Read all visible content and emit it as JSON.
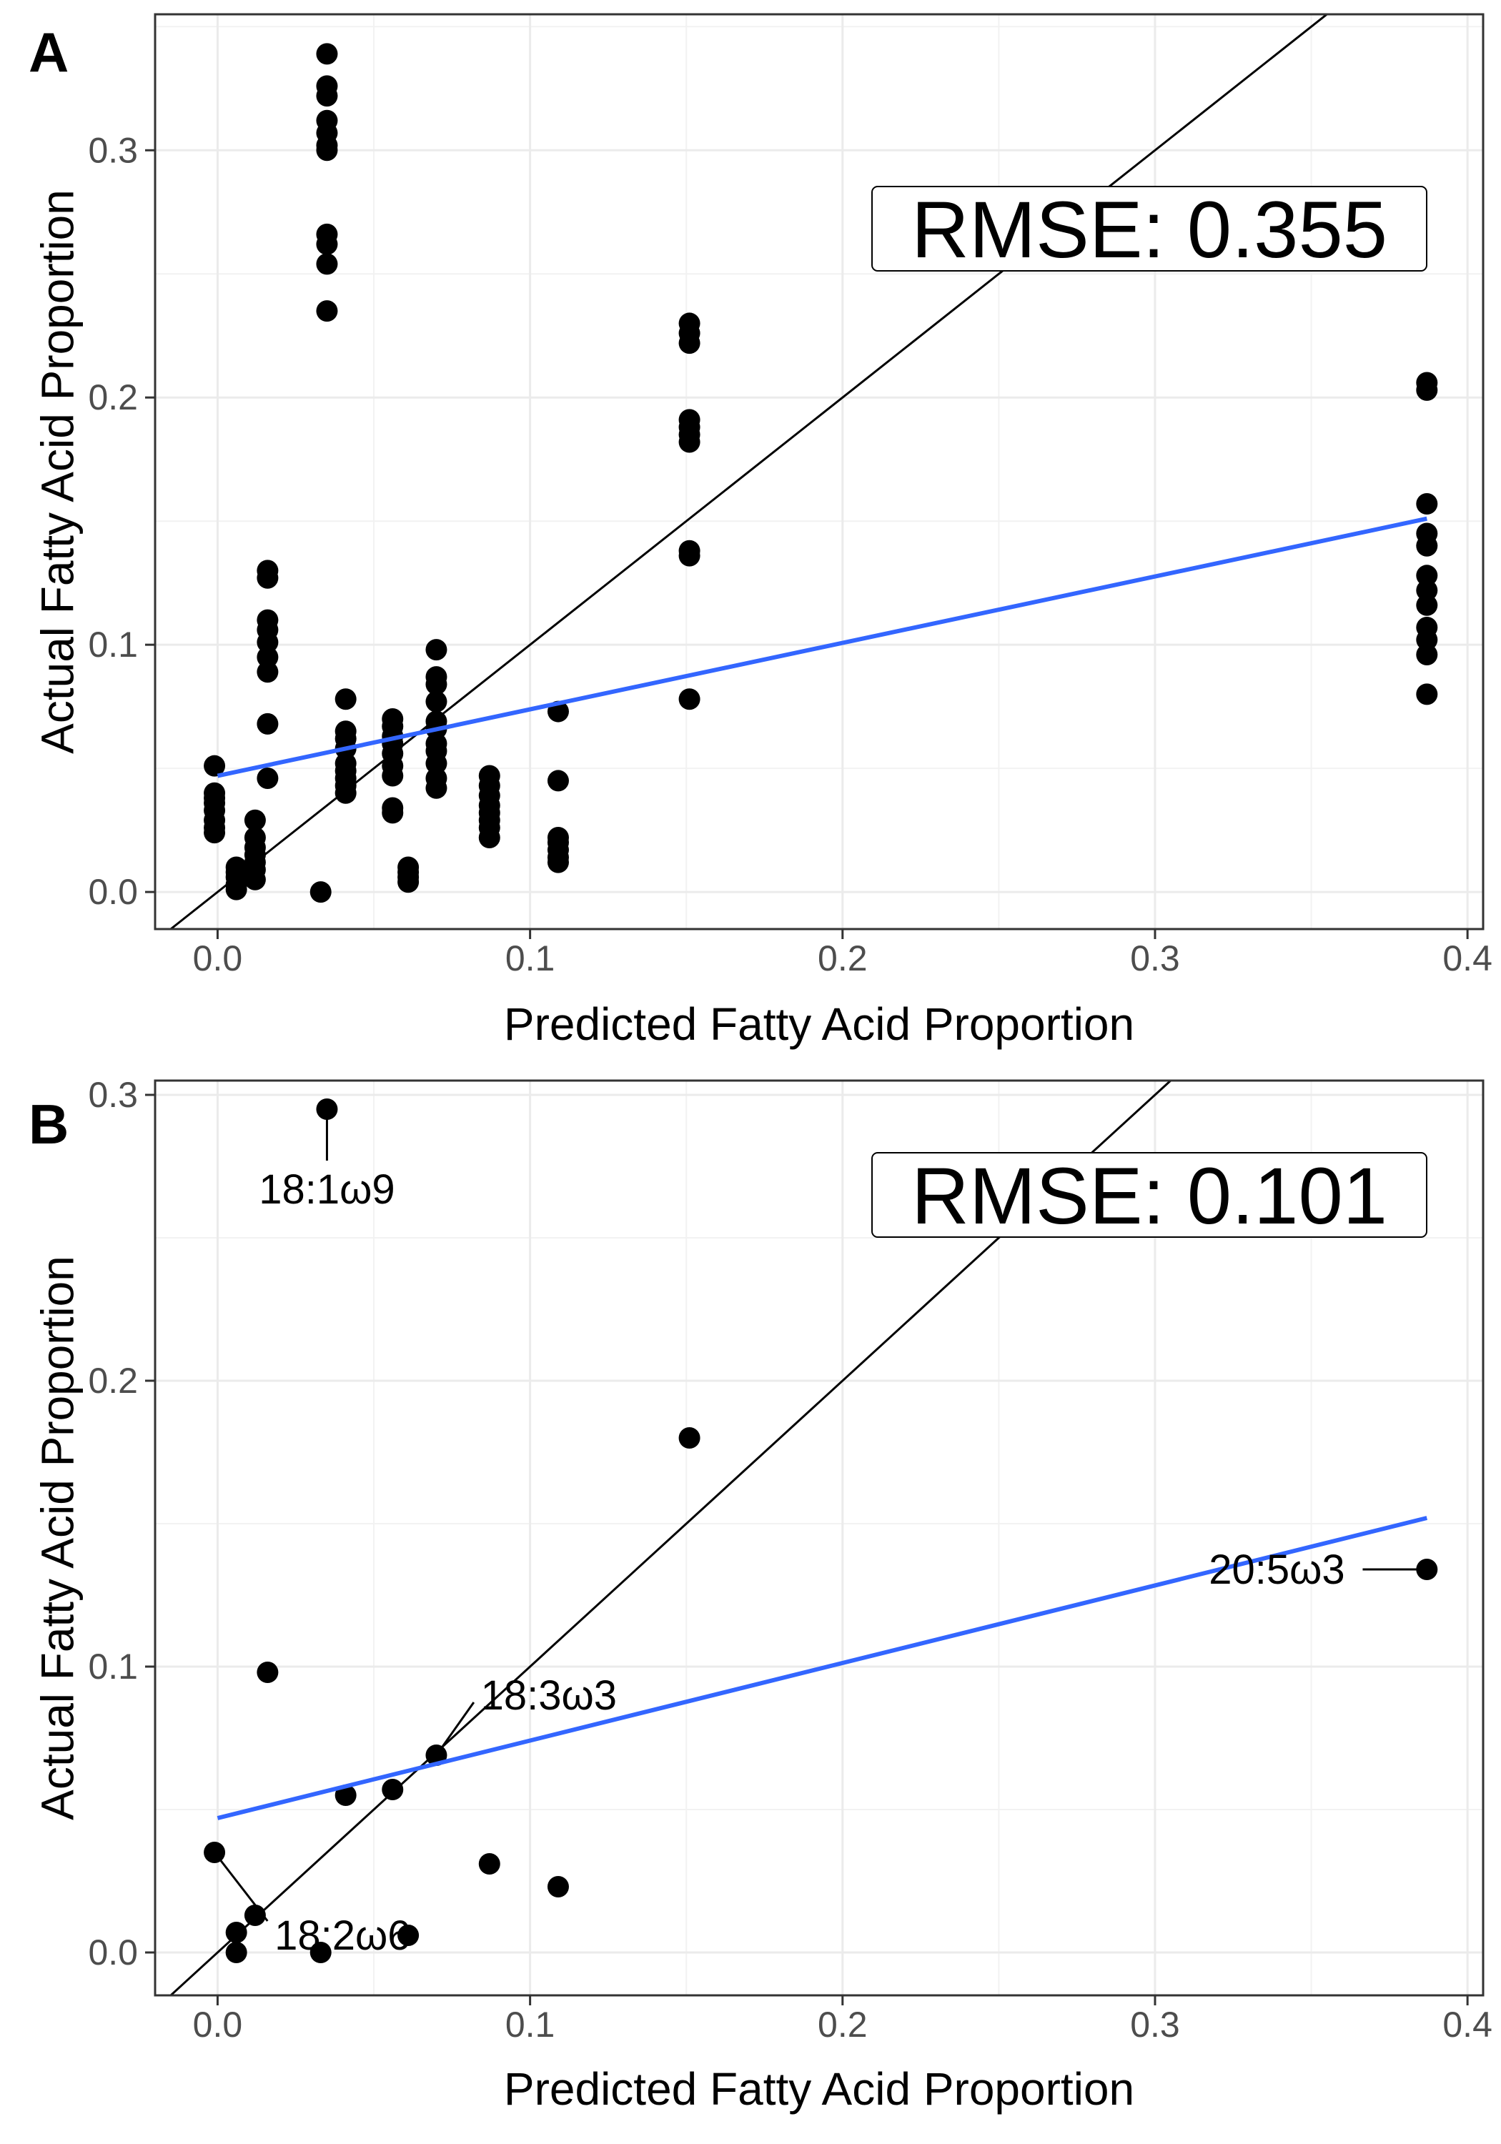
{
  "chart_data": [
    {
      "type": "scatter",
      "panel_label": "A",
      "xlabel": "Predicted Fatty Acid Proportion",
      "ylabel": "Actual Fatty Acid Proportion",
      "xlim": [
        -0.02,
        0.405
      ],
      "ylim": [
        -0.015,
        0.355
      ],
      "xticks": [
        0.0,
        0.1,
        0.2,
        0.3,
        0.4
      ],
      "yticks": [
        0.0,
        0.1,
        0.2,
        0.3
      ],
      "xtick_labels": [
        "0.0",
        "0.1",
        "0.2",
        "0.3",
        "0.4"
      ],
      "ytick_labels": [
        "0.0",
        "0.1",
        "0.2",
        "0.3"
      ],
      "grid": true,
      "annotation": "RMSE:  0.355",
      "reference_line": {
        "slope": 1,
        "intercept": 0,
        "color": "#000000"
      },
      "fit_line": {
        "x": [
          0.0,
          0.387
        ],
        "y": [
          0.047,
          0.151
        ],
        "color": "#3366FF"
      },
      "points": [
        [
          -0.001,
          0.051
        ],
        [
          -0.001,
          0.04
        ],
        [
          -0.001,
          0.038
        ],
        [
          -0.001,
          0.036
        ],
        [
          -0.001,
          0.033
        ],
        [
          -0.001,
          0.029
        ],
        [
          -0.001,
          0.026
        ],
        [
          -0.001,
          0.024
        ],
        [
          0.006,
          0.01
        ],
        [
          0.006,
          0.008
        ],
        [
          0.006,
          0.006
        ],
        [
          0.006,
          0.003
        ],
        [
          0.006,
          0.001
        ],
        [
          0.012,
          0.029
        ],
        [
          0.012,
          0.022
        ],
        [
          0.012,
          0.018
        ],
        [
          0.012,
          0.015
        ],
        [
          0.012,
          0.012
        ],
        [
          0.012,
          0.009
        ],
        [
          0.012,
          0.005
        ],
        [
          0.016,
          0.13
        ],
        [
          0.016,
          0.127
        ],
        [
          0.016,
          0.11
        ],
        [
          0.016,
          0.106
        ],
        [
          0.016,
          0.101
        ],
        [
          0.016,
          0.095
        ],
        [
          0.016,
          0.089
        ],
        [
          0.016,
          0.068
        ],
        [
          0.016,
          0.046
        ],
        [
          0.035,
          0.339
        ],
        [
          0.035,
          0.326
        ],
        [
          0.035,
          0.322
        ],
        [
          0.035,
          0.312
        ],
        [
          0.035,
          0.307
        ],
        [
          0.035,
          0.302
        ],
        [
          0.035,
          0.3
        ],
        [
          0.035,
          0.266
        ],
        [
          0.035,
          0.262
        ],
        [
          0.035,
          0.254
        ],
        [
          0.035,
          0.235
        ],
        [
          0.033,
          0.0
        ],
        [
          0.041,
          0.078
        ],
        [
          0.041,
          0.065
        ],
        [
          0.041,
          0.062
        ],
        [
          0.041,
          0.058
        ],
        [
          0.041,
          0.052
        ],
        [
          0.041,
          0.049
        ],
        [
          0.041,
          0.046
        ],
        [
          0.041,
          0.043
        ],
        [
          0.041,
          0.04
        ],
        [
          0.056,
          0.07
        ],
        [
          0.056,
          0.067
        ],
        [
          0.056,
          0.063
        ],
        [
          0.056,
          0.06
        ],
        [
          0.056,
          0.056
        ],
        [
          0.056,
          0.051
        ],
        [
          0.056,
          0.047
        ],
        [
          0.056,
          0.034
        ],
        [
          0.056,
          0.032
        ],
        [
          0.061,
          0.01
        ],
        [
          0.061,
          0.008
        ],
        [
          0.061,
          0.006
        ],
        [
          0.061,
          0.004
        ],
        [
          0.07,
          0.098
        ],
        [
          0.07,
          0.087
        ],
        [
          0.07,
          0.084
        ],
        [
          0.07,
          0.077
        ],
        [
          0.07,
          0.069
        ],
        [
          0.07,
          0.066
        ],
        [
          0.07,
          0.06
        ],
        [
          0.07,
          0.057
        ],
        [
          0.07,
          0.052
        ],
        [
          0.07,
          0.046
        ],
        [
          0.07,
          0.042
        ],
        [
          0.087,
          0.047
        ],
        [
          0.087,
          0.043
        ],
        [
          0.087,
          0.039
        ],
        [
          0.087,
          0.035
        ],
        [
          0.087,
          0.032
        ],
        [
          0.087,
          0.029
        ],
        [
          0.087,
          0.026
        ],
        [
          0.087,
          0.022
        ],
        [
          0.109,
          0.073
        ],
        [
          0.109,
          0.045
        ],
        [
          0.109,
          0.022
        ],
        [
          0.109,
          0.02
        ],
        [
          0.109,
          0.017
        ],
        [
          0.109,
          0.014
        ],
        [
          0.109,
          0.012
        ],
        [
          0.151,
          0.23
        ],
        [
          0.151,
          0.226
        ],
        [
          0.151,
          0.222
        ],
        [
          0.151,
          0.191
        ],
        [
          0.151,
          0.188
        ],
        [
          0.151,
          0.185
        ],
        [
          0.151,
          0.182
        ],
        [
          0.151,
          0.138
        ],
        [
          0.151,
          0.136
        ],
        [
          0.151,
          0.078
        ],
        [
          0.387,
          0.206
        ],
        [
          0.387,
          0.203
        ],
        [
          0.387,
          0.157
        ],
        [
          0.387,
          0.145
        ],
        [
          0.387,
          0.14
        ],
        [
          0.387,
          0.128
        ],
        [
          0.387,
          0.122
        ],
        [
          0.387,
          0.116
        ],
        [
          0.387,
          0.107
        ],
        [
          0.387,
          0.102
        ],
        [
          0.387,
          0.096
        ],
        [
          0.387,
          0.08
        ]
      ],
      "labels": []
    },
    {
      "type": "scatter",
      "panel_label": "B",
      "xlabel": "Predicted Fatty Acid Proportion",
      "ylabel": "Actual Fatty Acid Proportion",
      "xlim": [
        -0.02,
        0.405
      ],
      "ylim": [
        -0.015,
        0.305
      ],
      "xticks": [
        0.0,
        0.1,
        0.2,
        0.3,
        0.4
      ],
      "yticks": [
        0.0,
        0.1,
        0.2,
        0.3
      ],
      "xtick_labels": [
        "0.0",
        "0.1",
        "0.2",
        "0.3",
        "0.4"
      ],
      "ytick_labels": [
        "0.0",
        "0.1",
        "0.2",
        "0.3"
      ],
      "grid": true,
      "annotation": "RMSE:  0.101",
      "reference_line": {
        "slope": 1,
        "intercept": 0,
        "color": "#000000"
      },
      "fit_line": {
        "x": [
          0.0,
          0.387
        ],
        "y": [
          0.047,
          0.152
        ],
        "color": "#3366FF"
      },
      "points": [
        [
          0.035,
          0.295
        ],
        [
          0.151,
          0.18
        ],
        [
          0.387,
          0.134
        ],
        [
          0.016,
          0.098
        ],
        [
          0.07,
          0.069
        ],
        [
          0.041,
          0.055
        ],
        [
          0.056,
          0.057
        ],
        [
          -0.001,
          0.035
        ],
        [
          0.087,
          0.031
        ],
        [
          0.109,
          0.023
        ],
        [
          0.012,
          0.013
        ],
        [
          0.006,
          0.007
        ],
        [
          0.006,
          0.0
        ],
        [
          0.033,
          0.0
        ],
        [
          0.061,
          0.006
        ]
      ],
      "labels": [
        {
          "text": "18:1ω9",
          "x": 0.035,
          "y": 0.295,
          "tx": 0.035,
          "ty": 0.267,
          "anchor": "middle"
        },
        {
          "text": "20:5ω3",
          "x": 0.387,
          "y": 0.134,
          "tx": 0.339,
          "ty": 0.134,
          "anchor": "middle"
        },
        {
          "text": "18:3ω3",
          "x": 0.07,
          "y": 0.069,
          "tx": 0.106,
          "ty": 0.09,
          "anchor": "middle"
        },
        {
          "text": "18:2ω6",
          "x": -0.001,
          "y": 0.035,
          "tx": 0.04,
          "ty": 0.006,
          "anchor": "middle"
        }
      ]
    }
  ]
}
